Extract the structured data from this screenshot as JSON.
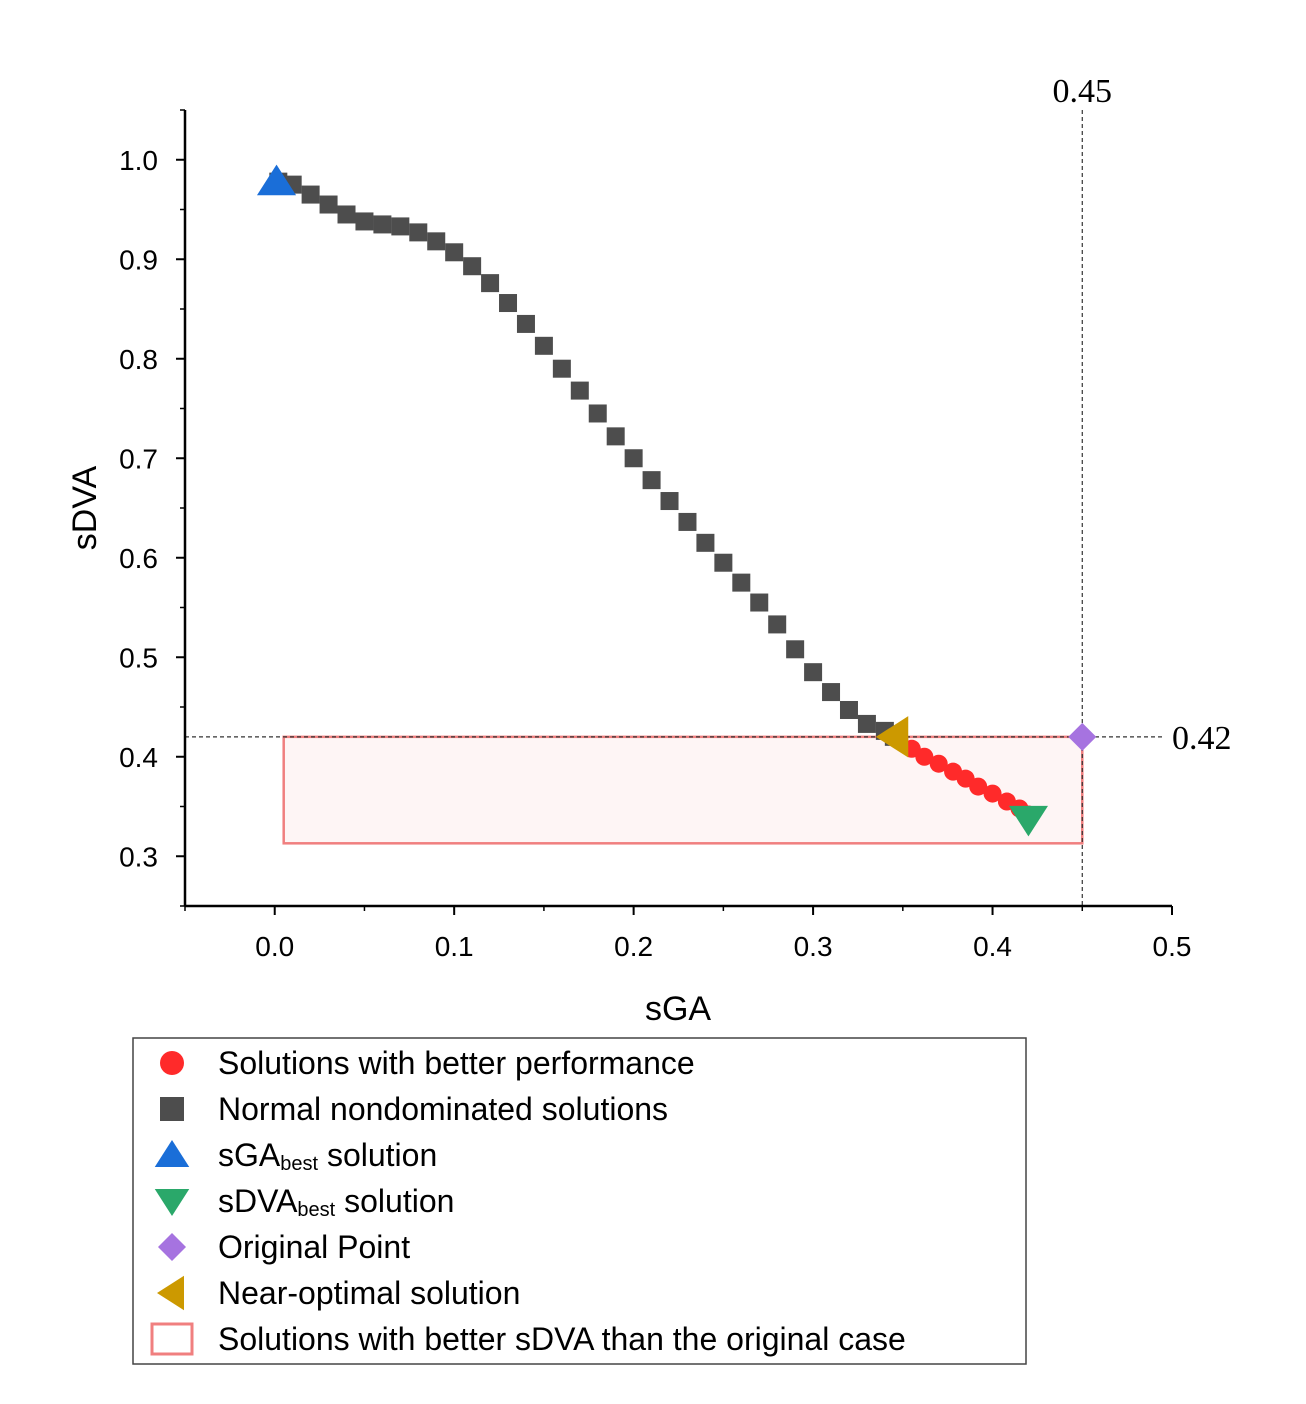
{
  "chart_data": {
    "type": "scatter",
    "xlabel": "sGA",
    "ylabel": "sDVA",
    "xlim": [
      -0.05,
      0.5
    ],
    "ylim": [
      0.25,
      1.05
    ],
    "x_ticks": [
      "0.0",
      "0.1",
      "0.2",
      "0.3",
      "0.4",
      "0.5"
    ],
    "y_ticks": [
      "0.3",
      "0.4",
      "0.5",
      "0.6",
      "0.7",
      "0.8",
      "0.9",
      "1.0"
    ],
    "reference_lines": [
      {
        "orientation": "vertical",
        "value": 0.45,
        "label": "0.45"
      },
      {
        "orientation": "horizontal",
        "value": 0.42,
        "label": "0.42"
      }
    ],
    "region": {
      "x": [
        0.005,
        0.45
      ],
      "y": [
        0.313,
        0.42
      ],
      "color": "#f07f7f"
    },
    "series": [
      {
        "name": "Normal nondominated solutions",
        "marker": "square",
        "color": "#4d4d4d",
        "points": [
          [
            0.002,
            0.978
          ],
          [
            0.01,
            0.975
          ],
          [
            0.02,
            0.965
          ],
          [
            0.03,
            0.955
          ],
          [
            0.04,
            0.945
          ],
          [
            0.05,
            0.938
          ],
          [
            0.06,
            0.935
          ],
          [
            0.07,
            0.933
          ],
          [
            0.08,
            0.927
          ],
          [
            0.09,
            0.918
          ],
          [
            0.1,
            0.907
          ],
          [
            0.11,
            0.893
          ],
          [
            0.12,
            0.876
          ],
          [
            0.13,
            0.856
          ],
          [
            0.14,
            0.835
          ],
          [
            0.15,
            0.813
          ],
          [
            0.16,
            0.79
          ],
          [
            0.17,
            0.768
          ],
          [
            0.18,
            0.745
          ],
          [
            0.19,
            0.722
          ],
          [
            0.2,
            0.7
          ],
          [
            0.21,
            0.678
          ],
          [
            0.22,
            0.657
          ],
          [
            0.23,
            0.636
          ],
          [
            0.24,
            0.615
          ],
          [
            0.25,
            0.595
          ],
          [
            0.26,
            0.575
          ],
          [
            0.27,
            0.555
          ],
          [
            0.28,
            0.533
          ],
          [
            0.29,
            0.508
          ],
          [
            0.3,
            0.485
          ],
          [
            0.31,
            0.465
          ],
          [
            0.32,
            0.447
          ],
          [
            0.33,
            0.433
          ],
          [
            0.34,
            0.426
          ],
          [
            0.345,
            0.42
          ]
        ]
      },
      {
        "name": "Solutions with better performance",
        "marker": "circle",
        "color": "#ff2a2a",
        "points": [
          [
            0.348,
            0.418
          ],
          [
            0.355,
            0.408
          ],
          [
            0.362,
            0.4
          ],
          [
            0.37,
            0.393
          ],
          [
            0.378,
            0.385
          ],
          [
            0.385,
            0.378
          ],
          [
            0.392,
            0.37
          ],
          [
            0.4,
            0.363
          ],
          [
            0.408,
            0.355
          ],
          [
            0.415,
            0.348
          ],
          [
            0.42,
            0.342
          ]
        ]
      },
      {
        "name": "sGAbest solution",
        "marker": "triangle-up",
        "color": "#1a6ed8",
        "points": [
          [
            0.001,
            0.978
          ]
        ]
      },
      {
        "name": "sDVAbest solution",
        "marker": "triangle-down",
        "color": "#2aa86a",
        "points": [
          [
            0.42,
            0.337
          ]
        ]
      },
      {
        "name": "Original Point",
        "marker": "diamond",
        "color": "#a673e0",
        "points": [
          [
            0.45,
            0.42
          ]
        ]
      },
      {
        "name": "Near-optimal solution",
        "marker": "triangle-left",
        "color": "#cc9900",
        "points": [
          [
            0.345,
            0.42
          ]
        ]
      }
    ],
    "legend": {
      "position": "bottom",
      "entries": [
        {
          "marker": "circle",
          "color": "#ff2a2a",
          "text": "Solutions with better performance",
          "sub": "",
          "tail": ""
        },
        {
          "marker": "square",
          "color": "#4d4d4d",
          "text": "Normal nondominated solutions",
          "sub": "",
          "tail": ""
        },
        {
          "marker": "triangle-up",
          "color": "#1a6ed8",
          "text": "sGA",
          "sub": "best",
          "tail": " solution"
        },
        {
          "marker": "triangle-down",
          "color": "#2aa86a",
          "text": "sDVA",
          "sub": "best",
          "tail": " solution"
        },
        {
          "marker": "diamond",
          "color": "#a673e0",
          "text": "Original Point",
          "sub": "",
          "tail": ""
        },
        {
          "marker": "triangle-left",
          "color": "#cc9900",
          "text": "Near-optimal solution",
          "sub": "",
          "tail": ""
        },
        {
          "marker": "box",
          "color": "#f07f7f",
          "text": "Solutions with better sDVA than the original case",
          "sub": "",
          "tail": ""
        }
      ]
    }
  }
}
